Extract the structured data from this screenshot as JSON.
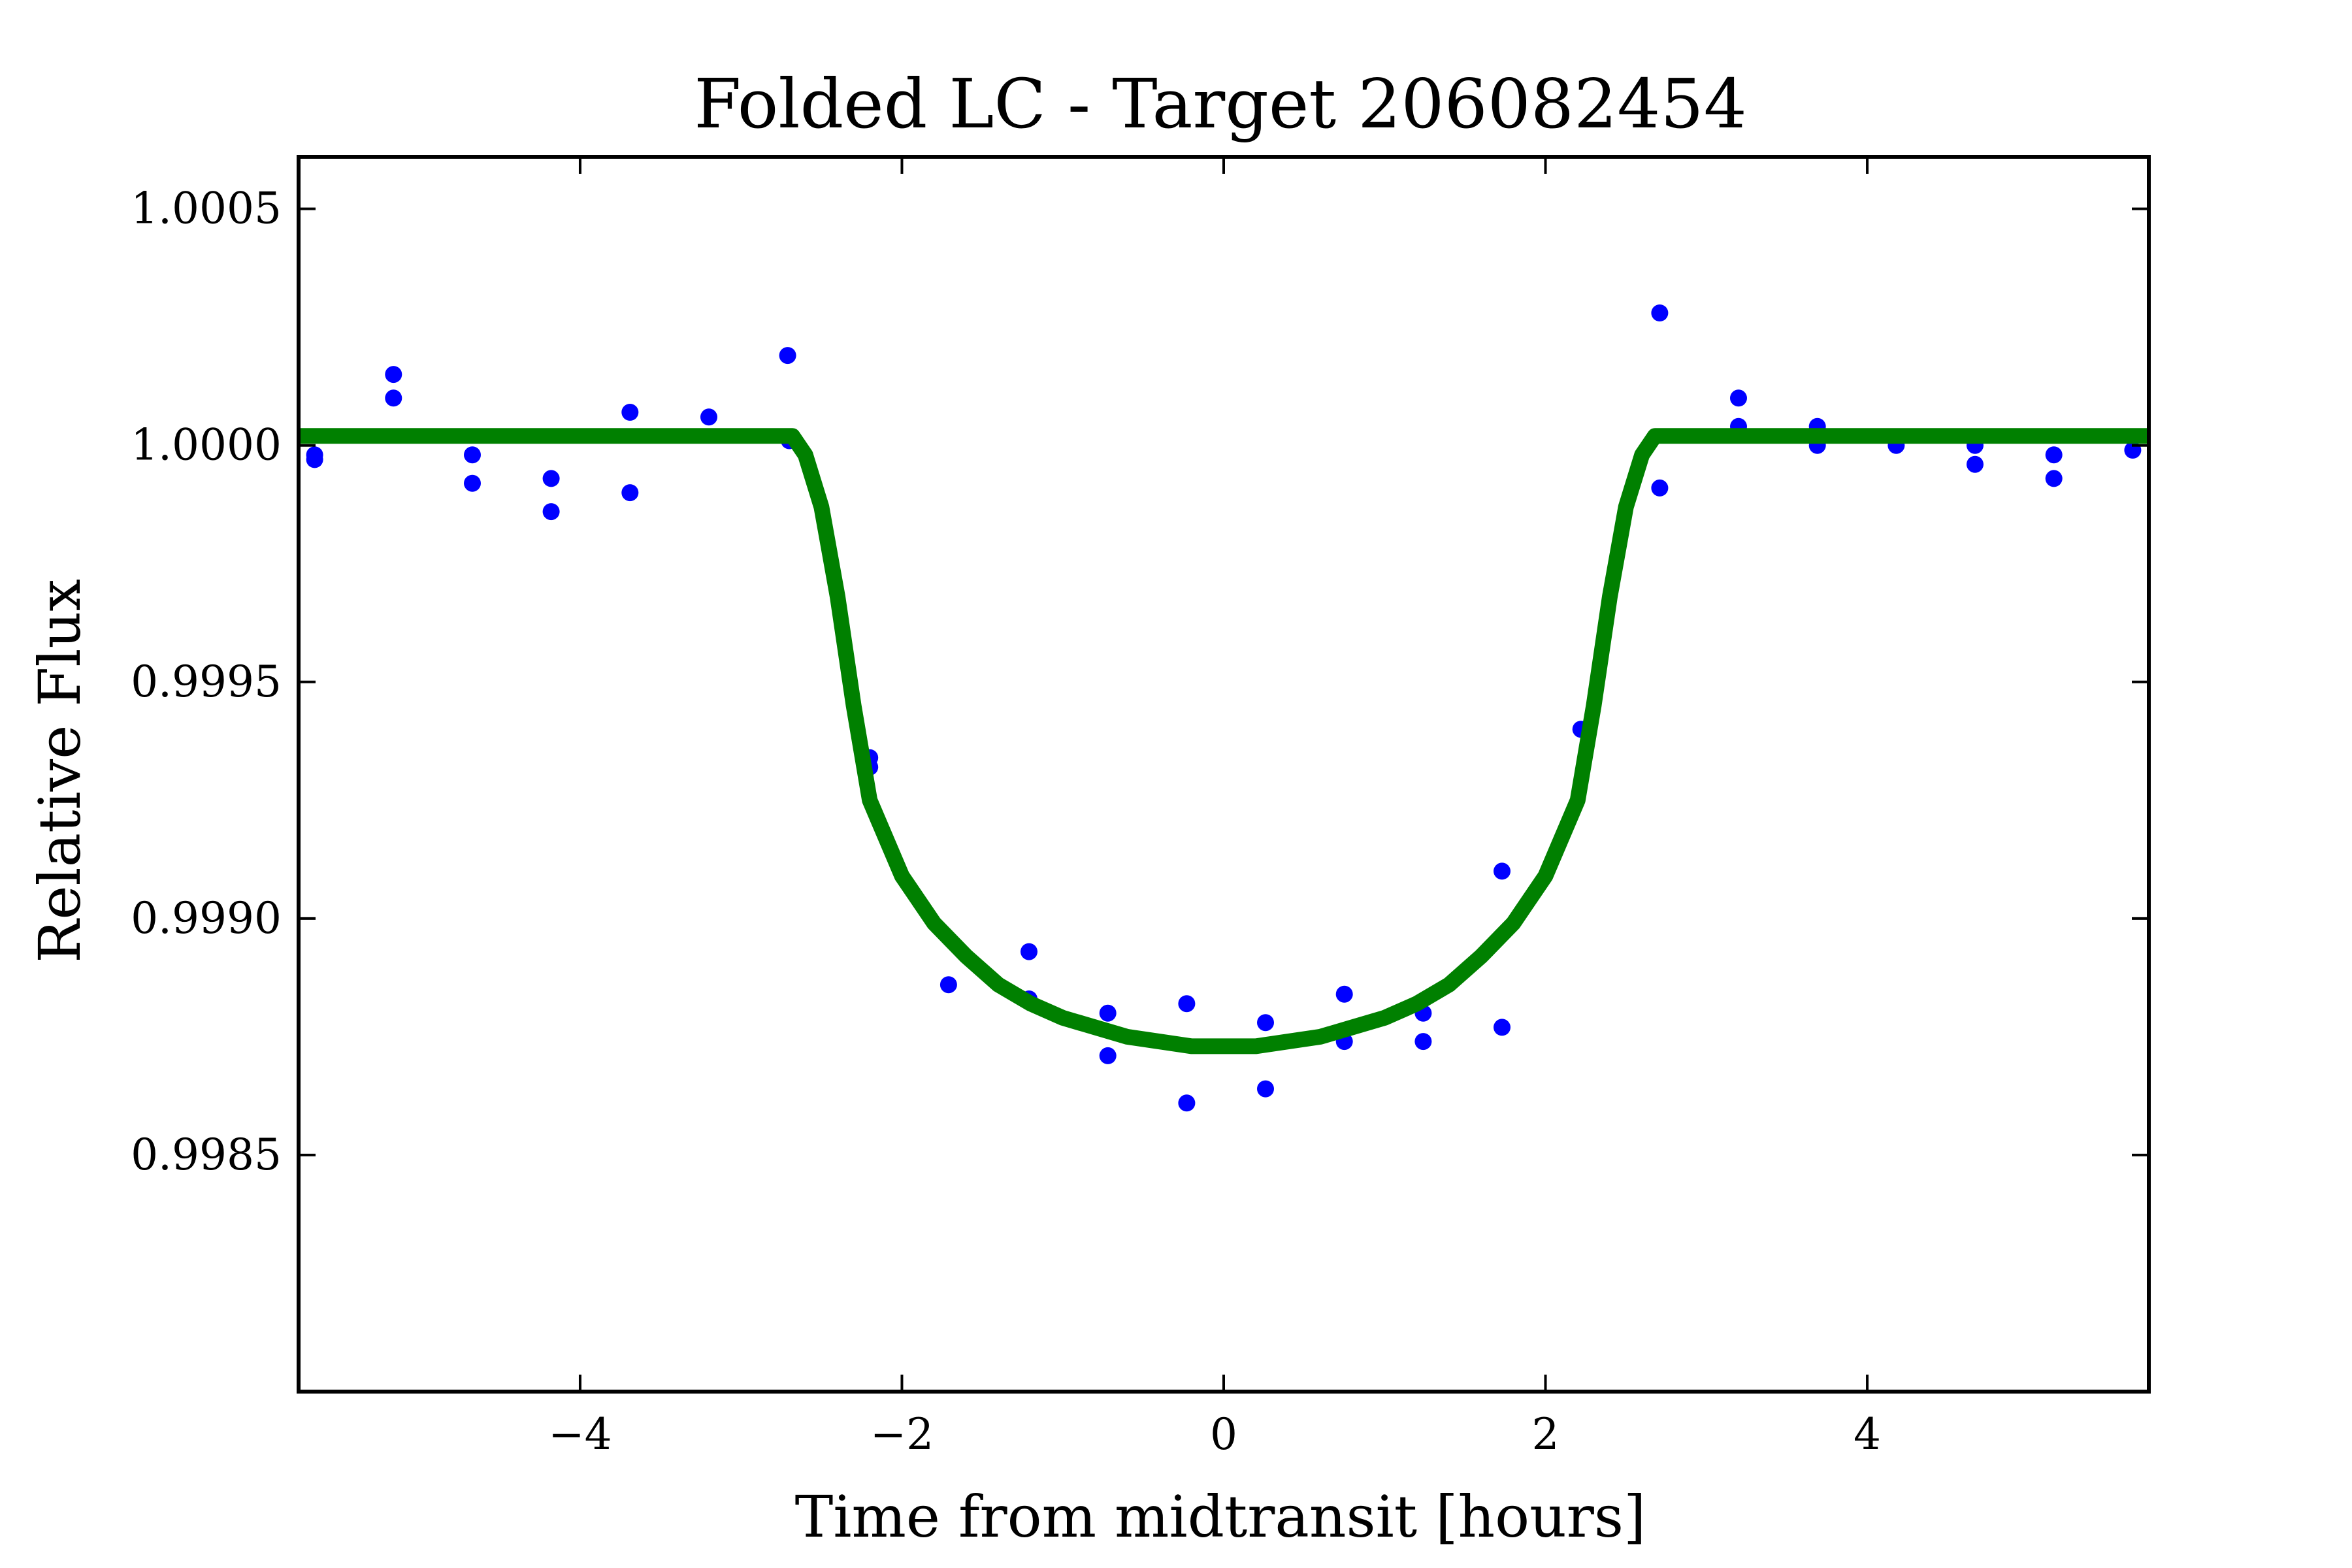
{
  "chart_data": {
    "type": "scatter",
    "title": "Folded LC - Target 206082454",
    "xlabel": "Time from midtransit [hours]",
    "ylabel": "Relative Flux",
    "xlim": [
      -5.75,
      5.75
    ],
    "ylim": [
      0.998,
      1.00061
    ],
    "x_ticks": [
      {
        "value": -4,
        "label": "−4"
      },
      {
        "value": -2,
        "label": "−2"
      },
      {
        "value": 0,
        "label": "0"
      },
      {
        "value": 2,
        "label": "2"
      },
      {
        "value": 4,
        "label": "4"
      }
    ],
    "y_ticks": [
      {
        "value": 0.9985,
        "label": "0.9985"
      },
      {
        "value": 0.999,
        "label": "0.9990"
      },
      {
        "value": 0.9995,
        "label": "0.9995"
      },
      {
        "value": 1.0,
        "label": "1.0000"
      },
      {
        "value": 1.0005,
        "label": "1.0005"
      }
    ],
    "grid": false,
    "series": [
      {
        "kind": "scatter",
        "color": "#0000ff",
        "points": [
          [
            -5.65,
            0.99997
          ],
          [
            -5.65,
            0.99998
          ],
          [
            -5.16,
            1.00015
          ],
          [
            -5.16,
            1.0001
          ],
          [
            -4.67,
            0.99998
          ],
          [
            -4.67,
            0.99992
          ],
          [
            -4.18,
            0.99993
          ],
          [
            -4.18,
            0.99986
          ],
          [
            -3.69,
            1.00007
          ],
          [
            -3.69,
            0.9999
          ],
          [
            -3.2,
            1.00006
          ],
          [
            -2.71,
            1.00019
          ],
          [
            -2.7,
            1.00001
          ],
          [
            -2.2,
            0.99934
          ],
          [
            -2.2,
            0.99932
          ],
          [
            -1.71,
            0.99886
          ],
          [
            -1.21,
            0.99893
          ],
          [
            -1.21,
            0.99883
          ],
          [
            -0.72,
            0.9988
          ],
          [
            -0.72,
            0.99871
          ],
          [
            -0.23,
            0.99882
          ],
          [
            -0.23,
            0.99861
          ],
          [
            0.26,
            0.99878
          ],
          [
            0.26,
            0.99864
          ],
          [
            0.75,
            0.99884
          ],
          [
            0.75,
            0.99874
          ],
          [
            1.24,
            0.9988
          ],
          [
            1.24,
            0.99874
          ],
          [
            1.73,
            0.9991
          ],
          [
            1.73,
            0.99877
          ],
          [
            2.22,
            0.9994
          ],
          [
            2.71,
            1.00028
          ],
          [
            2.71,
            0.99991
          ],
          [
            3.2,
            1.0001
          ],
          [
            3.2,
            1.00004
          ],
          [
            3.69,
            1.00004
          ],
          [
            3.69,
            1.0
          ],
          [
            4.18,
            1.0
          ],
          [
            4.67,
            1.0
          ],
          [
            4.67,
            0.99996
          ],
          [
            5.16,
            0.99998
          ],
          [
            5.16,
            0.99993
          ],
          [
            5.65,
            0.99999
          ]
        ]
      },
      {
        "kind": "line",
        "color": "#008000",
        "points": [
          [
            -5.75,
            1.00002
          ],
          [
            -2.68,
            1.00002
          ],
          [
            -2.6,
            0.99998
          ],
          [
            -2.5,
            0.99987
          ],
          [
            -2.4,
            0.99968
          ],
          [
            -2.3,
            0.99945
          ],
          [
            -2.2,
            0.99925
          ],
          [
            -2.0,
            0.99909
          ],
          [
            -1.8,
            0.99899
          ],
          [
            -1.6,
            0.99892
          ],
          [
            -1.4,
            0.99886
          ],
          [
            -1.2,
            0.99882
          ],
          [
            -1.0,
            0.99879
          ],
          [
            -0.8,
            0.99877
          ],
          [
            -0.6,
            0.99875
          ],
          [
            -0.4,
            0.99874
          ],
          [
            -0.2,
            0.99873
          ],
          [
            0.0,
            0.99873
          ],
          [
            0.2,
            0.99873
          ],
          [
            0.4,
            0.99874
          ],
          [
            0.6,
            0.99875
          ],
          [
            0.8,
            0.99877
          ],
          [
            1.0,
            0.99879
          ],
          [
            1.2,
            0.99882
          ],
          [
            1.4,
            0.99886
          ],
          [
            1.6,
            0.99892
          ],
          [
            1.8,
            0.99899
          ],
          [
            2.0,
            0.99909
          ],
          [
            2.2,
            0.99925
          ],
          [
            2.3,
            0.99945
          ],
          [
            2.4,
            0.99968
          ],
          [
            2.5,
            0.99987
          ],
          [
            2.6,
            0.99998
          ],
          [
            2.68,
            1.00002
          ],
          [
            5.75,
            1.00002
          ]
        ]
      }
    ]
  }
}
